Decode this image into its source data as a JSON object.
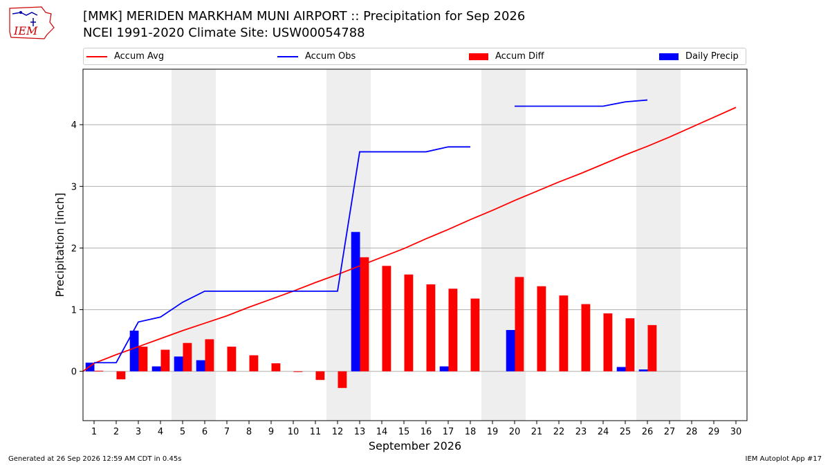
{
  "header": {
    "title_line1": "[MMK] MERIDEN MARKHAM MUNI AIRPORT :: Precipitation for Sep 2026",
    "title_line2": "NCEI 1991-2020 Climate Site: USW00054788",
    "logo_text": "IEM"
  },
  "footer": {
    "generated": "Generated at 26 Sep 2026 12:59 AM CDT in 0.45s",
    "app": "IEM Autoplot App #17"
  },
  "colors": {
    "avg": "#ff0000",
    "obs": "#0000ff",
    "diff": "#ff0000",
    "daily": "#0000ff",
    "weekend_shade": "#eeeeee",
    "grid": "#b0b0b0",
    "logo": "#cc0000"
  },
  "chart_data": {
    "type": "bar",
    "xlabel": "September 2026",
    "ylabel": "Precipitation [inch]",
    "xlim": [
      0.5,
      30.5
    ],
    "ylim": [
      -0.8,
      4.9
    ],
    "yticks": [
      0,
      1,
      2,
      3,
      4
    ],
    "xticks": [
      1,
      2,
      3,
      4,
      5,
      6,
      7,
      8,
      9,
      10,
      11,
      12,
      13,
      14,
      15,
      16,
      17,
      18,
      19,
      20,
      21,
      22,
      23,
      24,
      25,
      26,
      27,
      28,
      29,
      30
    ],
    "grid": "horizontal",
    "legend": "top, outside",
    "legend_entries": [
      "Accum Avg",
      "Accum Obs",
      "Accum Diff",
      "Daily Precip"
    ],
    "weekend_days": [
      [
        5,
        6
      ],
      [
        12,
        13
      ],
      [
        19,
        20
      ],
      [
        26,
        27
      ]
    ],
    "days": [
      1,
      2,
      3,
      4,
      5,
      6,
      7,
      8,
      9,
      10,
      11,
      12,
      13,
      14,
      15,
      16,
      17,
      18,
      19,
      20,
      21,
      22,
      23,
      24,
      25,
      26,
      27,
      28,
      29,
      30
    ],
    "accum_avg": [
      0.13,
      0.27,
      0.4,
      0.53,
      0.66,
      0.78,
      0.9,
      1.04,
      1.17,
      1.3,
      1.44,
      1.57,
      1.71,
      1.85,
      1.99,
      2.15,
      2.3,
      2.46,
      2.61,
      2.77,
      2.92,
      3.07,
      3.21,
      3.36,
      3.51,
      3.65,
      3.8,
      3.96,
      4.12,
      4.28
    ],
    "accum_obs": [
      0.14,
      0.14,
      0.8,
      0.88,
      1.12,
      1.3,
      1.3,
      1.3,
      1.3,
      1.3,
      1.3,
      1.3,
      3.56,
      3.56,
      3.56,
      3.56,
      3.64,
      3.64,
      null,
      4.3,
      4.3,
      4.3,
      4.3,
      4.3,
      4.37,
      4.4
    ],
    "accum_diff": [
      0.01,
      -0.13,
      0.4,
      0.35,
      0.46,
      0.52,
      0.4,
      0.26,
      0.13,
      -0.01,
      -0.14,
      -0.27,
      1.85,
      1.71,
      1.57,
      1.41,
      1.34,
      1.18,
      null,
      1.53,
      1.38,
      1.23,
      1.09,
      0.94,
      0.86,
      0.75
    ],
    "daily_precip": [
      0.14,
      0,
      0.66,
      0.08,
      0.24,
      0.18,
      0,
      0,
      0,
      0,
      0,
      0,
      2.26,
      0,
      0,
      0,
      0.08,
      0,
      null,
      0.67,
      0,
      0,
      0,
      0,
      0.07,
      0.03
    ]
  }
}
